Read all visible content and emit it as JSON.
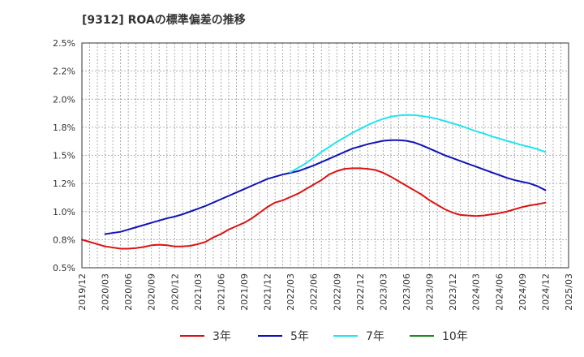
{
  "chart_data": {
    "type": "line",
    "title": "[9312]  ROAの標準偏差の推移",
    "xlabel": "",
    "ylabel": "",
    "ylim": [
      0.5,
      2.5
    ],
    "y_ticks": [
      "0.5%",
      "0.8%",
      "1.0%",
      "1.2%",
      "1.5%",
      "1.8%",
      "2.0%",
      "2.2%",
      "2.5%"
    ],
    "x_ticks": [
      "2019/12",
      "2020/03",
      "2020/06",
      "2020/09",
      "2020/12",
      "2021/03",
      "2021/06",
      "2021/09",
      "2021/12",
      "2022/03",
      "2022/06",
      "2022/09",
      "2022/12",
      "2023/03",
      "2023/06",
      "2023/09",
      "2023/12",
      "2024/03",
      "2024/06",
      "2024/09",
      "2024/12",
      "2025/03"
    ],
    "grid": true,
    "legend_position": "bottom",
    "series": [
      {
        "name": "3年",
        "color": "#dd1111",
        "x": [
          "2019/12",
          "2020/01",
          "2020/02",
          "2020/03",
          "2020/04",
          "2020/05",
          "2020/06",
          "2020/07",
          "2020/08",
          "2020/09",
          "2020/10",
          "2020/11",
          "2020/12",
          "2021/01",
          "2021/02",
          "2021/03",
          "2021/04",
          "2021/05",
          "2021/06",
          "2021/07",
          "2021/08",
          "2021/09",
          "2021/10",
          "2021/11",
          "2021/12",
          "2022/01",
          "2022/02",
          "2022/03",
          "2022/04",
          "2022/05",
          "2022/06",
          "2022/07",
          "2022/08",
          "2022/09",
          "2022/10",
          "2022/11",
          "2022/12",
          "2023/01",
          "2023/02",
          "2023/03",
          "2023/04",
          "2023/05",
          "2023/06",
          "2023/07",
          "2023/08",
          "2023/09",
          "2023/10",
          "2023/11",
          "2023/12",
          "2024/01",
          "2024/02",
          "2024/03",
          "2024/04",
          "2024/05",
          "2024/06",
          "2024/07",
          "2024/08",
          "2024/09",
          "2024/10",
          "2024/11",
          "2024/12"
        ],
        "values": [
          0.75,
          0.73,
          0.71,
          0.69,
          0.68,
          0.67,
          0.67,
          0.675,
          0.685,
          0.7,
          0.705,
          0.7,
          0.69,
          0.69,
          0.695,
          0.71,
          0.73,
          0.77,
          0.8,
          0.84,
          0.87,
          0.9,
          0.94,
          0.99,
          1.04,
          1.08,
          1.1,
          1.13,
          1.16,
          1.2,
          1.24,
          1.28,
          1.33,
          1.36,
          1.38,
          1.385,
          1.385,
          1.38,
          1.37,
          1.345,
          1.31,
          1.27,
          1.23,
          1.19,
          1.15,
          1.1,
          1.06,
          1.02,
          0.99,
          0.97,
          0.965,
          0.96,
          0.965,
          0.975,
          0.985,
          1.0,
          1.02,
          1.04,
          1.055,
          1.065,
          1.08
        ]
      },
      {
        "name": "5年",
        "color": "#1111bb",
        "x": [
          "2020/03",
          "2020/04",
          "2020/05",
          "2020/06",
          "2020/07",
          "2020/08",
          "2020/09",
          "2020/10",
          "2020/11",
          "2020/12",
          "2021/01",
          "2021/02",
          "2021/03",
          "2021/04",
          "2021/05",
          "2021/06",
          "2021/07",
          "2021/08",
          "2021/09",
          "2021/10",
          "2021/11",
          "2021/12",
          "2022/01",
          "2022/02",
          "2022/03",
          "2022/04",
          "2022/05",
          "2022/06",
          "2022/07",
          "2022/08",
          "2022/09",
          "2022/10",
          "2022/11",
          "2022/12",
          "2023/01",
          "2023/02",
          "2023/03",
          "2023/04",
          "2023/05",
          "2023/06",
          "2023/07",
          "2023/08",
          "2023/09",
          "2023/10",
          "2023/11",
          "2023/12",
          "2024/01",
          "2024/02",
          "2024/03",
          "2024/04",
          "2024/05",
          "2024/06",
          "2024/07",
          "2024/08",
          "2024/09",
          "2024/10",
          "2024/11",
          "2024/12"
        ],
        "values": [
          0.8,
          0.81,
          0.82,
          0.84,
          0.86,
          0.88,
          0.9,
          0.92,
          0.94,
          0.955,
          0.975,
          1.0,
          1.025,
          1.05,
          1.08,
          1.11,
          1.14,
          1.17,
          1.2,
          1.23,
          1.26,
          1.29,
          1.31,
          1.33,
          1.345,
          1.36,
          1.385,
          1.41,
          1.44,
          1.47,
          1.5,
          1.53,
          1.56,
          1.58,
          1.6,
          1.615,
          1.63,
          1.635,
          1.635,
          1.63,
          1.615,
          1.59,
          1.56,
          1.53,
          1.5,
          1.475,
          1.45,
          1.425,
          1.4,
          1.375,
          1.35,
          1.325,
          1.3,
          1.28,
          1.265,
          1.25,
          1.225,
          1.19
        ]
      },
      {
        "name": "7年",
        "color": "#22e5ee",
        "x": [
          "2022/03",
          "2022/04",
          "2022/05",
          "2022/06",
          "2022/07",
          "2022/08",
          "2022/09",
          "2022/10",
          "2022/11",
          "2022/12",
          "2023/01",
          "2023/02",
          "2023/03",
          "2023/04",
          "2023/05",
          "2023/06",
          "2023/07",
          "2023/08",
          "2023/09",
          "2023/10",
          "2023/11",
          "2023/12",
          "2024/01",
          "2024/02",
          "2024/03",
          "2024/04",
          "2024/05",
          "2024/06",
          "2024/07",
          "2024/08",
          "2024/09",
          "2024/10",
          "2024/11",
          "2024/12"
        ],
        "values": [
          1.35,
          1.39,
          1.43,
          1.48,
          1.53,
          1.575,
          1.62,
          1.66,
          1.7,
          1.735,
          1.77,
          1.8,
          1.825,
          1.845,
          1.855,
          1.86,
          1.858,
          1.85,
          1.84,
          1.825,
          1.805,
          1.785,
          1.765,
          1.74,
          1.715,
          1.695,
          1.67,
          1.65,
          1.63,
          1.61,
          1.59,
          1.575,
          1.555,
          1.53
        ]
      },
      {
        "name": "10年",
        "color": "#228822",
        "x": [],
        "values": []
      }
    ]
  }
}
